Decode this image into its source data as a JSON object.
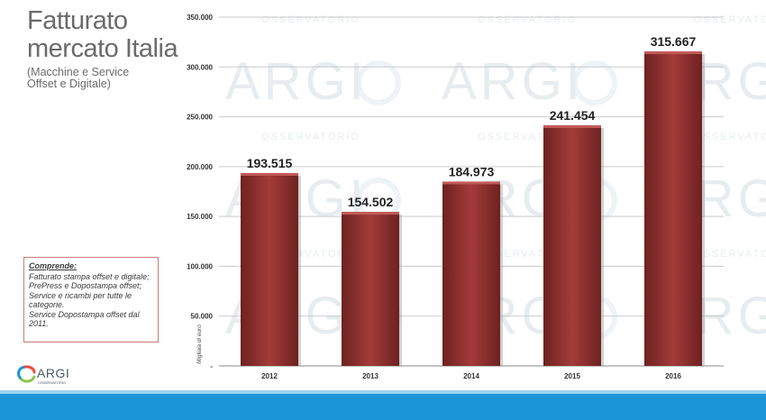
{
  "header": {
    "title_line1": "Fatturato",
    "title_line2": "mercato Italia",
    "subtitle_line1": "(Macchine e Service",
    "subtitle_line2": "Offset e Digitale)"
  },
  "note": {
    "heading": "Comprende:",
    "lines": [
      "Fatturato stampa offset e digitale;",
      "PrePress e Dopostampa offset;",
      "Service e ricambi per tutte le",
      "categorie.",
      "Service  Dopostampa offset dal",
      "2011."
    ]
  },
  "logo": {
    "text": "ARGI",
    "small_text": "OSSERVATORIO"
  },
  "watermark": {
    "big": "ARGI",
    "small": "OSSERVATORIO"
  },
  "colors": {
    "bar": "#a33b3a",
    "bar_dark": "#6e2220",
    "bar_light": "#c25a58",
    "grid": "#c9c9c9",
    "footer": "#1b95d8"
  },
  "chart_data": {
    "type": "bar",
    "categories": [
      "2012",
      "2013",
      "2014",
      "2015",
      "2016"
    ],
    "values": [
      193515,
      154502,
      184973,
      241454,
      315667
    ],
    "data_labels": [
      "193.515",
      "154.502",
      "184.973",
      "241.454",
      "315.667"
    ],
    "y_ticks": [
      0,
      50000,
      100000,
      150000,
      200000,
      250000,
      300000,
      350000
    ],
    "y_tick_labels": [
      "-",
      "50.000",
      "100.000",
      "150.000",
      "200.000",
      "250.000",
      "300.000",
      "350.000"
    ],
    "ylim": [
      0,
      350000
    ],
    "ylabel": "Migliaia di euro",
    "xlabel": "",
    "grid": true,
    "legend": "none"
  }
}
